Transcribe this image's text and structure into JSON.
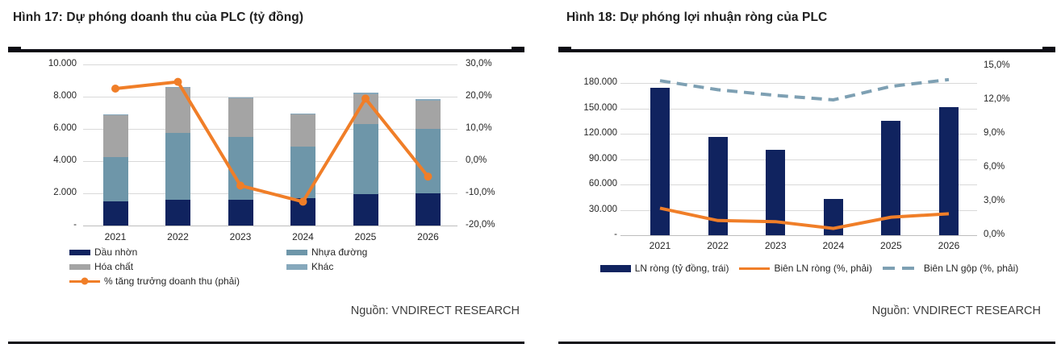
{
  "chart_data": [
    {
      "type": "stacked-bar+line",
      "title": "Hình 17: Dự phóng doanh thu của PLC (tỷ đồng)",
      "source_note": "Nguồn: VNDIRECT RESEARCH",
      "categories": [
        "2021",
        "2022",
        "2023",
        "2024",
        "2025",
        "2026"
      ],
      "left_axis": {
        "min": 0,
        "max": 10000,
        "tick_values": [
          10000,
          8000,
          6000,
          4000,
          2000,
          0
        ],
        "tick_labels": [
          "10.000",
          "8.000",
          "6.000",
          "4.000",
          "2.000",
          "-"
        ]
      },
      "right_axis": {
        "min": -20,
        "max": 30,
        "tick_values": [
          30,
          20,
          10,
          0,
          -10,
          -20
        ],
        "tick_labels": [
          "30,0%",
          "20,0%",
          "10,0%",
          "0,0%",
          "-10,0%",
          "-20,0%"
        ]
      },
      "bar_series": [
        {
          "name": "Dầu nhờn",
          "color": "#10235f",
          "values": [
            1500,
            1600,
            1600,
            1700,
            1950,
            2000
          ]
        },
        {
          "name": "Nhựa đường",
          "color": "#6e96a9",
          "values": [
            2750,
            4150,
            3900,
            3200,
            4350,
            4000
          ]
        },
        {
          "name": "Hóa chất",
          "color": "#a4a4a4",
          "values": [
            2600,
            2800,
            2400,
            2000,
            1850,
            1750
          ]
        },
        {
          "name": "Khác",
          "color": "#86a8bc",
          "values": [
            60,
            60,
            60,
            60,
            120,
            120
          ]
        }
      ],
      "line_series": [
        {
          "name": "% tăng trưởng doanh thu (phải)",
          "color": "#f07e28",
          "style": "solid",
          "markers": true,
          "values": [
            22.5,
            24.6,
            -7.6,
            -12.6,
            19.4,
            -4.8
          ]
        }
      ],
      "legend_position": "bottom-left",
      "grid": "horizontal"
    },
    {
      "type": "bar+line",
      "title": "Hình 18: Dự phóng lợi nhuận ròng của PLC",
      "source_note": "Nguồn: VNDIRECT RESEARCH",
      "categories": [
        "2021",
        "2022",
        "2023",
        "2024",
        "2025",
        "2026"
      ],
      "left_axis": {
        "min": 0,
        "tick_values": [
          180000,
          150000,
          120000,
          90000,
          60000,
          30000,
          0
        ],
        "tick_labels": [
          "180.000",
          "150.000",
          "120.000",
          "90.000",
          "60.000",
          "30.000",
          "-"
        ]
      },
      "right_axis": {
        "min": 0,
        "max": 15,
        "tick_values": [
          15,
          12,
          9,
          6,
          3,
          0
        ],
        "tick_labels": [
          "15,0%",
          "12,0%",
          "9,0%",
          "6,0%",
          "3,0%",
          "0,0%"
        ]
      },
      "bar_series": [
        {
          "name": "LN ròng (tỷ đồng, trái)",
          "color": "#10235f",
          "values": [
            174000,
            116000,
            101000,
            43000,
            135000,
            151000
          ]
        }
      ],
      "line_series": [
        {
          "name": "Biên LN ròng (%, phải)",
          "color": "#f07e28",
          "style": "solid",
          "markers": false,
          "values": [
            2.4,
            1.3,
            1.2,
            0.6,
            1.6,
            1.9
          ]
        },
        {
          "name": "Biên LN gộp (%, phải)",
          "color": "#7ea0b3",
          "style": "dashed",
          "markers": false,
          "values": [
            13.7,
            12.9,
            12.4,
            12.0,
            13.2,
            13.8
          ]
        }
      ],
      "legend_position": "bottom-center",
      "grid": "horizontal"
    }
  ]
}
